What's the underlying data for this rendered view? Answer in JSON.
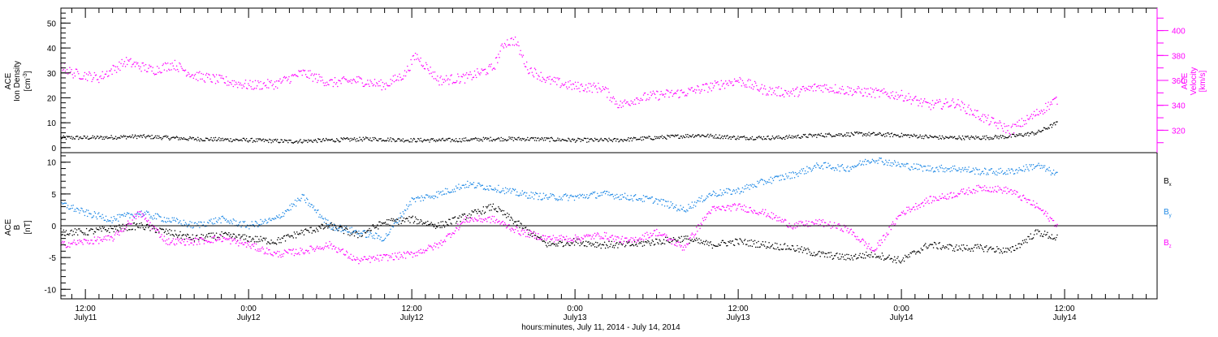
{
  "chart_data": {
    "type": "scatter",
    "x_axis": {
      "title": "hours:minutes, July 11, 2014 - July 14, 2014",
      "ticks": [
        {
          "hour": 12,
          "time": "12:00",
          "date": "July11"
        },
        {
          "hour": 24,
          "time": "0:00",
          "date": "July12"
        },
        {
          "hour": 36,
          "time": "12:00",
          "date": "July12"
        },
        {
          "hour": 48,
          "time": "0:00",
          "date": "July13"
        },
        {
          "hour": 60,
          "time": "12:00",
          "date": "July13"
        },
        {
          "hour": 72,
          "time": "0:00",
          "date": "July14"
        },
        {
          "hour": 84,
          "time": "12:00",
          "date": "July14"
        }
      ],
      "range_hours": [
        10.2,
        90.8
      ]
    },
    "panels": [
      {
        "id": "plasma",
        "left_axis": {
          "label_lines": [
            "ACE",
            "Ion Density"
          ],
          "unit_base": "[cm",
          "unit_sup": "-3",
          "unit_end": "]",
          "ylim": [
            -2,
            56
          ],
          "ticks": [
            0,
            10,
            20,
            30,
            40,
            50
          ]
        },
        "right_axis": {
          "label_lines": [
            "ACE",
            "Velocity"
          ],
          "unit": "[km/s]",
          "ylim": [
            302,
            418
          ],
          "ticks": [
            320,
            340,
            360,
            380,
            400
          ],
          "color": "#ff00ff"
        },
        "series": [
          {
            "key": "density",
            "axis": "left",
            "color": "#000000",
            "x": [
              10.2,
              13,
              16,
              20,
              24,
              27,
              30,
              33,
              36,
              39,
              42,
              45,
              48,
              51,
              54,
              57,
              60,
              63,
              66,
              69,
              72,
              75,
              78,
              80,
              82,
              83.5
            ],
            "y": [
              4,
              4,
              4.5,
              3.5,
              3,
              2.5,
              3,
              3.5,
              3,
              3,
              3.5,
              3.5,
              3,
              3,
              4,
              5,
              4,
              4,
              5,
              5.5,
              5,
              4,
              4,
              4.5,
              6,
              10
            ]
          },
          {
            "key": "velocity",
            "axis": "right",
            "color": "#ff00ff",
            "x": [
              10.2,
              11,
              13,
              15,
              17,
              18.5,
              20,
              22,
              24,
              26,
              28,
              30,
              32,
              34,
              35.5,
              36.3,
              37,
              38,
              40,
              42,
              42.8,
              43.6,
              44.5,
              46,
              48,
              50,
              51.3,
              52.5,
              54,
              56,
              58,
              60,
              62,
              64,
              66,
              68,
              70,
              72,
              74,
              76,
              78,
              80,
              81.5,
              83.5
            ],
            "y": [
              372,
              366,
              362,
              375,
              368,
              373,
              364,
              360,
              356,
              357,
              366,
              358,
              360,
              356,
              365,
              380,
              372,
              360,
              362,
              370,
              390,
              392,
              370,
              360,
              355,
              354,
              340,
              345,
              348,
              350,
              355,
              360,
              352,
              350,
              355,
              352,
              350,
              348,
              340,
              342,
              330,
              320,
              330,
              345
            ]
          }
        ]
      },
      {
        "id": "magnetic",
        "left_axis": {
          "label_lines": [
            "ACE",
            "B"
          ],
          "unit": "[nT]",
          "ylim": [
            -11.5,
            11.5
          ],
          "ticks": [
            -10,
            -5,
            0,
            5,
            10
          ]
        },
        "zero_line": true,
        "legend": [
          {
            "label": "B",
            "sub": "x",
            "color": "#000000"
          },
          {
            "label": "B",
            "sub": "y",
            "color": "#1e88e5"
          },
          {
            "label": "B",
            "sub": "z",
            "color": "#ff00ff"
          }
        ],
        "series": [
          {
            "key": "Bx",
            "color": "#000000",
            "x": [
              10.2,
              12,
              14,
              16,
              18,
              20,
              22,
              24,
              26,
              28,
              30,
              32,
              34,
              36,
              38,
              40,
              42,
              44,
              46,
              48,
              50,
              52,
              54,
              56,
              58,
              60,
              62,
              64,
              66,
              68,
              70,
              72,
              74,
              76,
              78,
              80,
              82,
              83.5
            ],
            "y": [
              -1,
              -1,
              -0.5,
              0,
              -1,
              -2,
              -1.5,
              -2,
              -2.5,
              -1,
              0,
              -1.5,
              0.5,
              1,
              0,
              1.5,
              3,
              0,
              -3,
              -2.5,
              -3,
              -3,
              -2.5,
              -2,
              -3,
              -2.5,
              -3,
              -3.5,
              -4.5,
              -5,
              -4.5,
              -5.5,
              -3,
              -3.5,
              -3.5,
              -4,
              -1,
              -2
            ]
          },
          {
            "key": "By",
            "color": "#1e88e5",
            "x": [
              10.2,
              12,
              14,
              16,
              18,
              20,
              22,
              24,
              26,
              28,
              30,
              32,
              34,
              36,
              38,
              40,
              42,
              44,
              46,
              48,
              50,
              52,
              54,
              56,
              58,
              60,
              62,
              64,
              66,
              68,
              70,
              72,
              74,
              76,
              78,
              80,
              82,
              83.5
            ],
            "y": [
              3.5,
              2,
              1,
              2,
              1,
              0,
              1,
              0,
              1,
              4.5,
              0,
              -1,
              -2,
              4,
              5,
              6.5,
              6,
              5,
              4.5,
              4.5,
              5,
              4.5,
              4,
              2.5,
              5,
              5.5,
              7,
              8,
              9.5,
              9,
              10.5,
              9.5,
              9,
              9,
              8.5,
              8.5,
              9.5,
              8
            ]
          },
          {
            "key": "Bz",
            "color": "#ff00ff",
            "x": [
              10.2,
              12,
              14,
              16,
              18,
              20,
              22,
              24,
              26,
              28,
              30,
              32,
              34,
              36,
              38,
              40,
              42,
              44,
              46,
              48,
              50,
              52,
              54,
              56,
              58,
              60,
              62,
              64,
              66,
              68,
              70,
              72,
              74,
              76,
              78,
              80,
              82,
              83.5
            ],
            "y": [
              -3,
              -2.5,
              -2,
              2,
              -2.5,
              -2.5,
              -2,
              -3,
              -4.5,
              -4,
              -3,
              -5.5,
              -5,
              -4.5,
              -3,
              1,
              1,
              -1,
              -2,
              -2,
              -1.5,
              -2.5,
              -1,
              -3.5,
              2.5,
              3,
              2,
              0,
              0.5,
              -0.5,
              -4,
              2,
              4,
              5,
              6,
              5.5,
              3,
              0
            ]
          }
        ]
      }
    ]
  }
}
